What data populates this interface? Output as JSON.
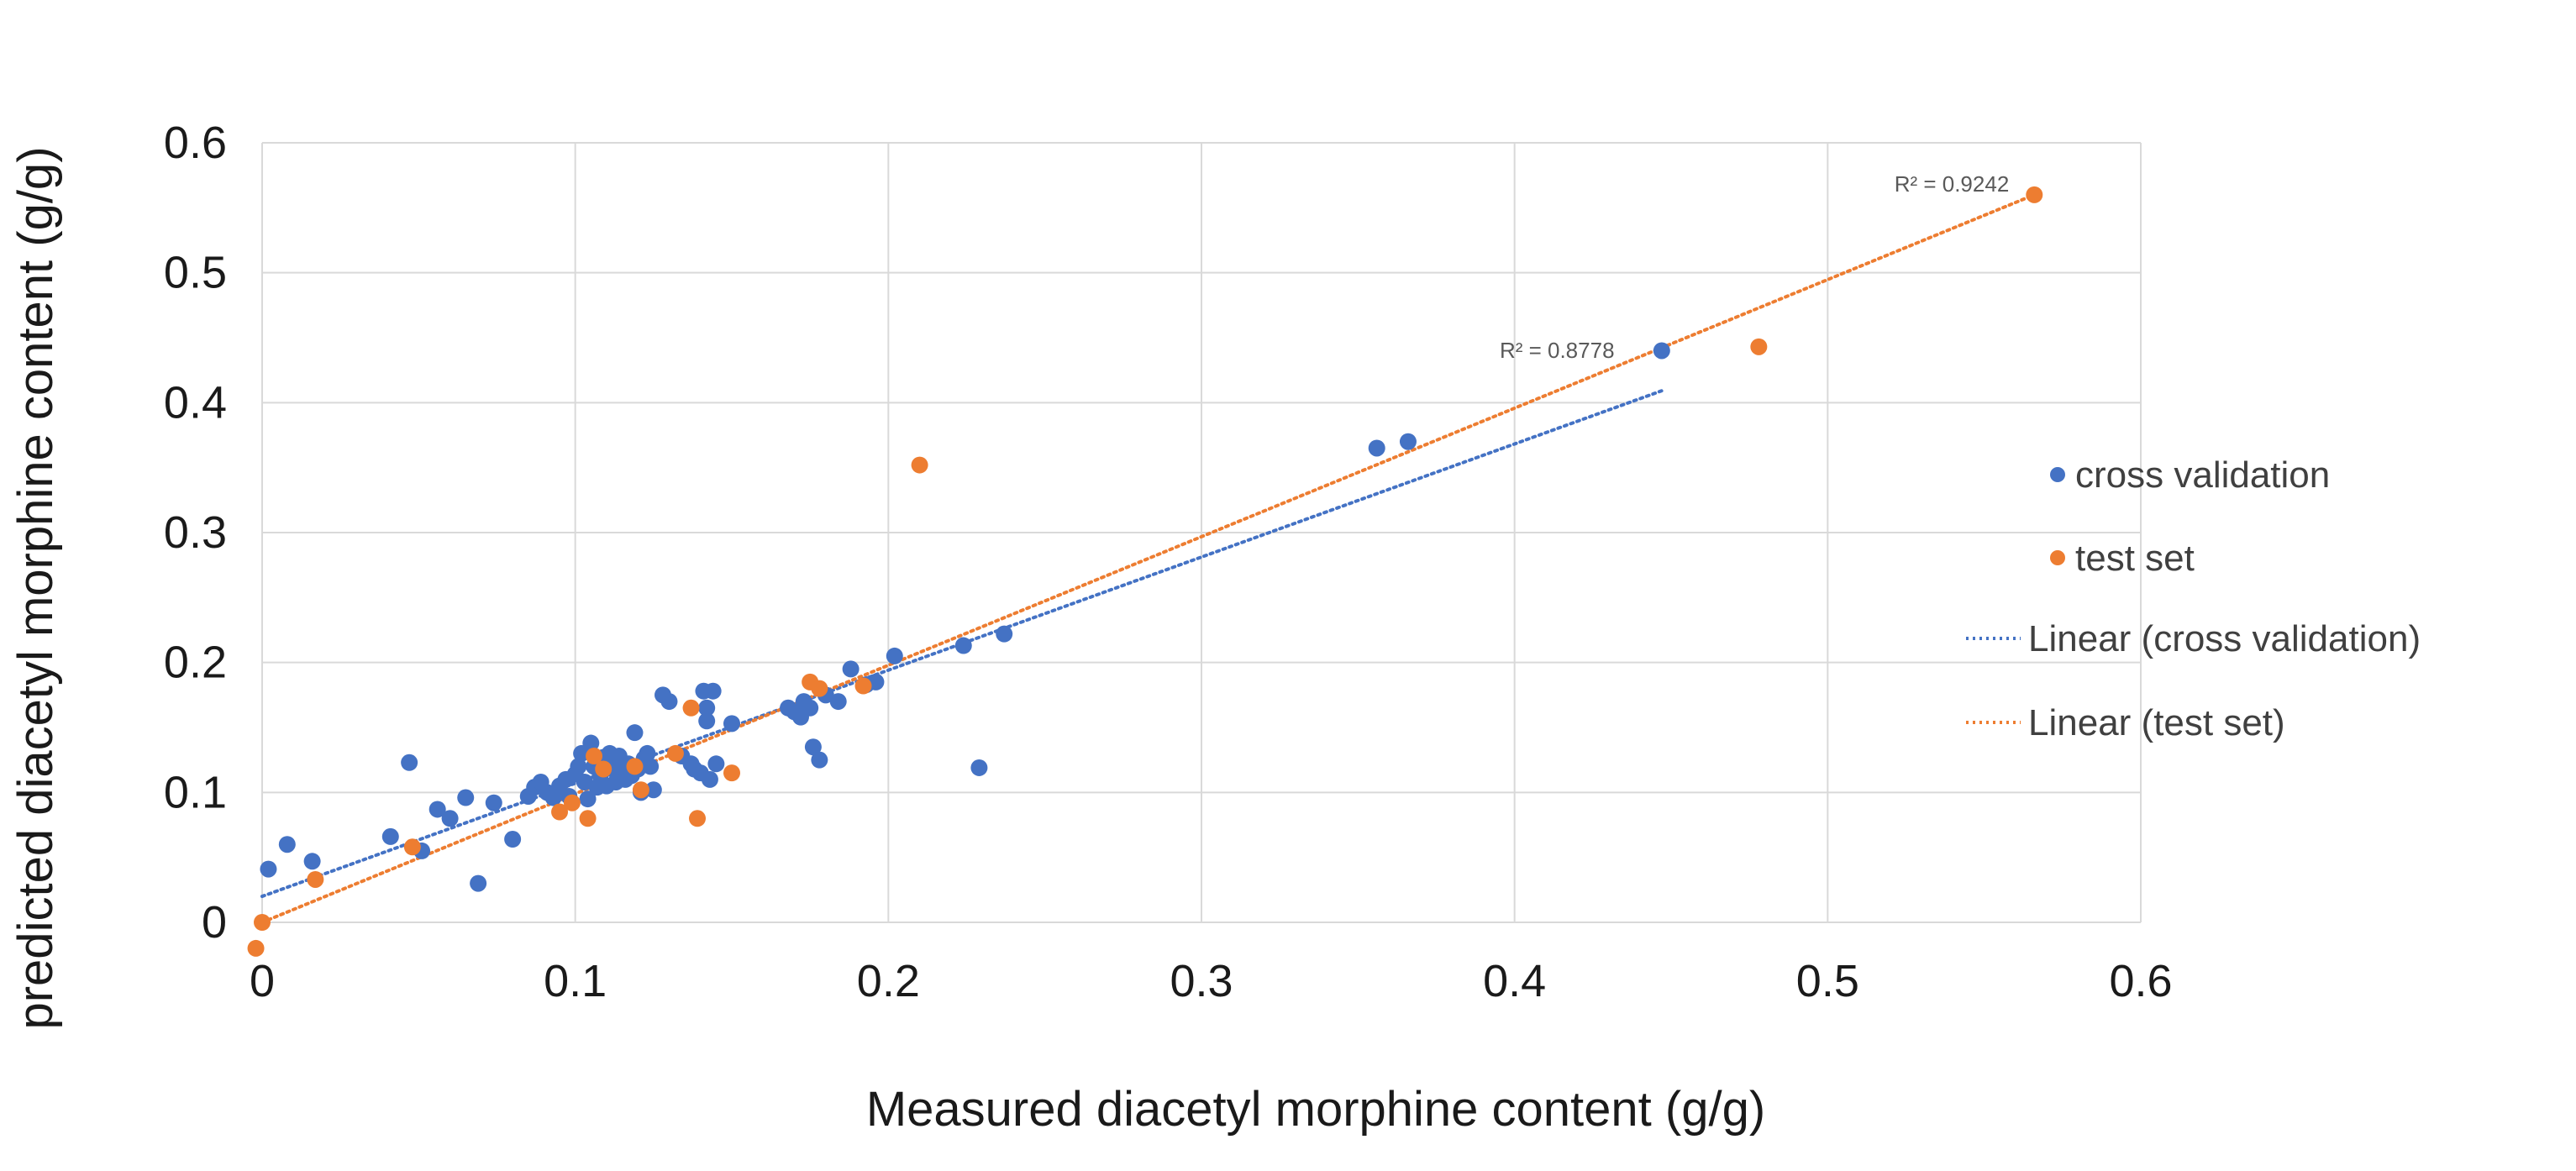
{
  "chart_data": {
    "type": "scatter",
    "xlabel": "Measured diacetyl morphine content (g/g)",
    "ylabel": "predicted diacetyl morphine content (g/g)",
    "xlim": [
      0,
      0.6
    ],
    "ylim": [
      0,
      0.6
    ],
    "x_ticks": [
      "0",
      "0.1",
      "0.2",
      "0.3",
      "0.4",
      "0.5",
      "0.6"
    ],
    "y_ticks": [
      "0",
      "0.1",
      "0.2",
      "0.3",
      "0.4",
      "0.5",
      "0.6"
    ],
    "grid": true,
    "legend_position": "right",
    "series": [
      {
        "name": "cross validation",
        "color": "#4472C4",
        "points": [
          [
            0.002,
            0.041
          ],
          [
            0.008,
            0.06
          ],
          [
            0.016,
            0.047
          ],
          [
            0.041,
            0.066
          ],
          [
            0.047,
            0.123
          ],
          [
            0.051,
            0.055
          ],
          [
            0.056,
            0.087
          ],
          [
            0.06,
            0.08
          ],
          [
            0.065,
            0.096
          ],
          [
            0.069,
            0.03
          ],
          [
            0.074,
            0.092
          ],
          [
            0.08,
            0.064
          ],
          [
            0.085,
            0.097
          ],
          [
            0.087,
            0.104
          ],
          [
            0.089,
            0.108
          ],
          [
            0.091,
            0.1
          ],
          [
            0.093,
            0.096
          ],
          [
            0.095,
            0.105
          ],
          [
            0.097,
            0.11
          ],
          [
            0.098,
            0.097
          ],
          [
            0.1,
            0.114
          ],
          [
            0.101,
            0.12
          ],
          [
            0.102,
            0.13
          ],
          [
            0.103,
            0.108
          ],
          [
            0.104,
            0.095
          ],
          [
            0.105,
            0.138
          ],
          [
            0.106,
            0.12
          ],
          [
            0.107,
            0.104
          ],
          [
            0.108,
            0.113
          ],
          [
            0.109,
            0.127
          ],
          [
            0.11,
            0.105
          ],
          [
            0.111,
            0.13
          ],
          [
            0.112,
            0.118
          ],
          [
            0.113,
            0.108
          ],
          [
            0.114,
            0.128
          ],
          [
            0.115,
            0.12
          ],
          [
            0.116,
            0.11
          ],
          [
            0.117,
            0.122
          ],
          [
            0.118,
            0.113
          ],
          [
            0.119,
            0.146
          ],
          [
            0.12,
            0.118
          ],
          [
            0.121,
            0.1
          ],
          [
            0.122,
            0.126
          ],
          [
            0.123,
            0.13
          ],
          [
            0.124,
            0.12
          ],
          [
            0.125,
            0.102
          ],
          [
            0.128,
            0.175
          ],
          [
            0.13,
            0.17
          ],
          [
            0.134,
            0.128
          ],
          [
            0.137,
            0.122
          ],
          [
            0.138,
            0.118
          ],
          [
            0.14,
            0.115
          ],
          [
            0.141,
            0.178
          ],
          [
            0.142,
            0.165
          ],
          [
            0.142,
            0.155
          ],
          [
            0.143,
            0.11
          ],
          [
            0.144,
            0.178
          ],
          [
            0.145,
            0.122
          ],
          [
            0.15,
            0.153
          ],
          [
            0.168,
            0.165
          ],
          [
            0.17,
            0.162
          ],
          [
            0.172,
            0.158
          ],
          [
            0.173,
            0.17
          ],
          [
            0.175,
            0.165
          ],
          [
            0.176,
            0.135
          ],
          [
            0.178,
            0.125
          ],
          [
            0.18,
            0.175
          ],
          [
            0.184,
            0.17
          ],
          [
            0.188,
            0.195
          ],
          [
            0.193,
            0.183
          ],
          [
            0.196,
            0.185
          ],
          [
            0.202,
            0.205
          ],
          [
            0.224,
            0.213
          ],
          [
            0.229,
            0.119
          ],
          [
            0.237,
            0.222
          ],
          [
            0.356,
            0.365
          ],
          [
            0.366,
            0.37
          ],
          [
            0.447,
            0.44
          ]
        ],
        "trendline": {
          "label": "Linear (cross validation)",
          "x": [
            0.0,
            0.448
          ],
          "y": [
            0.02,
            0.41
          ],
          "r2": "R² = 0.8778"
        }
      },
      {
        "name": "test set",
        "color": "#ED7D31",
        "points": [
          [
            -0.002,
            -0.02
          ],
          [
            0.0,
            0.0
          ],
          [
            0.017,
            0.033
          ],
          [
            0.048,
            0.058
          ],
          [
            0.095,
            0.085
          ],
          [
            0.099,
            0.092
          ],
          [
            0.104,
            0.08
          ],
          [
            0.106,
            0.128
          ],
          [
            0.109,
            0.118
          ],
          [
            0.119,
            0.12
          ],
          [
            0.121,
            0.102
          ],
          [
            0.132,
            0.13
          ],
          [
            0.137,
            0.165
          ],
          [
            0.139,
            0.08
          ],
          [
            0.15,
            0.115
          ],
          [
            0.175,
            0.185
          ],
          [
            0.178,
            0.18
          ],
          [
            0.192,
            0.182
          ],
          [
            0.21,
            0.352
          ],
          [
            0.478,
            0.443
          ],
          [
            0.566,
            0.56
          ]
        ],
        "trendline": {
          "label": "Linear (test set)",
          "x": [
            0.0,
            0.566
          ],
          "y": [
            0.0,
            0.56
          ],
          "r2": "R² = 0.9242"
        }
      }
    ]
  }
}
